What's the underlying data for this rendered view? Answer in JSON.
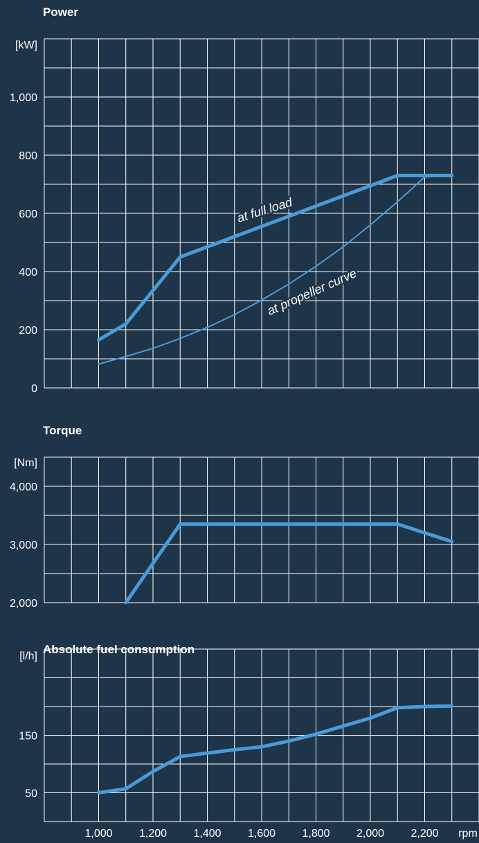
{
  "colors": {
    "background": "#1e3549",
    "grid": "#ffffff",
    "line": "#4a9ad8",
    "text": "#ffffff"
  },
  "x_axis": {
    "ticks": [
      1000,
      1200,
      1400,
      1600,
      1800,
      2000,
      2200
    ],
    "tick_labels": [
      "1,000",
      "1,200",
      "1,400",
      "1,600",
      "1,800",
      "2,000",
      "2,200"
    ],
    "unit_label": "rpm"
  },
  "chart_data": [
    {
      "type": "line",
      "title": "Power",
      "ylabel": "[kW]",
      "xlim": [
        800,
        2400
      ],
      "ylim": [
        0,
        1200
      ],
      "yticks": [
        0,
        200,
        400,
        600,
        800,
        1000
      ],
      "ytick_labels": [
        "0",
        "200",
        "400",
        "600",
        "800",
        "1,000"
      ],
      "grid": true,
      "series": [
        {
          "name": "at full load",
          "x": [
            1000,
            1100,
            1300,
            2100,
            2300
          ],
          "y": [
            165,
            220,
            450,
            730,
            730
          ]
        },
        {
          "name": "at propeller curve",
          "x": [
            1000,
            1100,
            1200,
            1300,
            1400,
            1500,
            1600,
            1700,
            1800,
            1900,
            2000,
            2100,
            2200,
            2300
          ],
          "y": [
            82,
            108,
            136,
            170,
            208,
            252,
            302,
            357,
            418,
            485,
            560,
            640,
            725,
            730
          ]
        }
      ]
    },
    {
      "type": "line",
      "title": "Torque",
      "ylabel": "[Nm]",
      "xlim": [
        800,
        2400
      ],
      "ylim": [
        2000,
        4500
      ],
      "yticks": [
        2000,
        3000,
        4000
      ],
      "ytick_labels": [
        "2,000",
        "3,000",
        "4,000"
      ],
      "grid": true,
      "series": [
        {
          "x": [
            1100,
            1300,
            2100,
            2300
          ],
          "y": [
            2000,
            3350,
            3350,
            3050
          ]
        }
      ]
    },
    {
      "type": "line",
      "title": "Absolute fuel consumption",
      "ylabel": "[l/h]",
      "xlim": [
        800,
        2400
      ],
      "ylim": [
        0,
        300
      ],
      "yticks": [
        50,
        150
      ],
      "ytick_labels": [
        "50",
        "150"
      ],
      "grid": true,
      "series": [
        {
          "x": [
            1000,
            1100,
            1200,
            1300,
            1400,
            1500,
            1600,
            1700,
            1800,
            1900,
            2000,
            2100,
            2200,
            2300
          ],
          "y": [
            50,
            57,
            87,
            113,
            119,
            125,
            130,
            140,
            152,
            166,
            180,
            198,
            200,
            201
          ]
        }
      ]
    }
  ]
}
